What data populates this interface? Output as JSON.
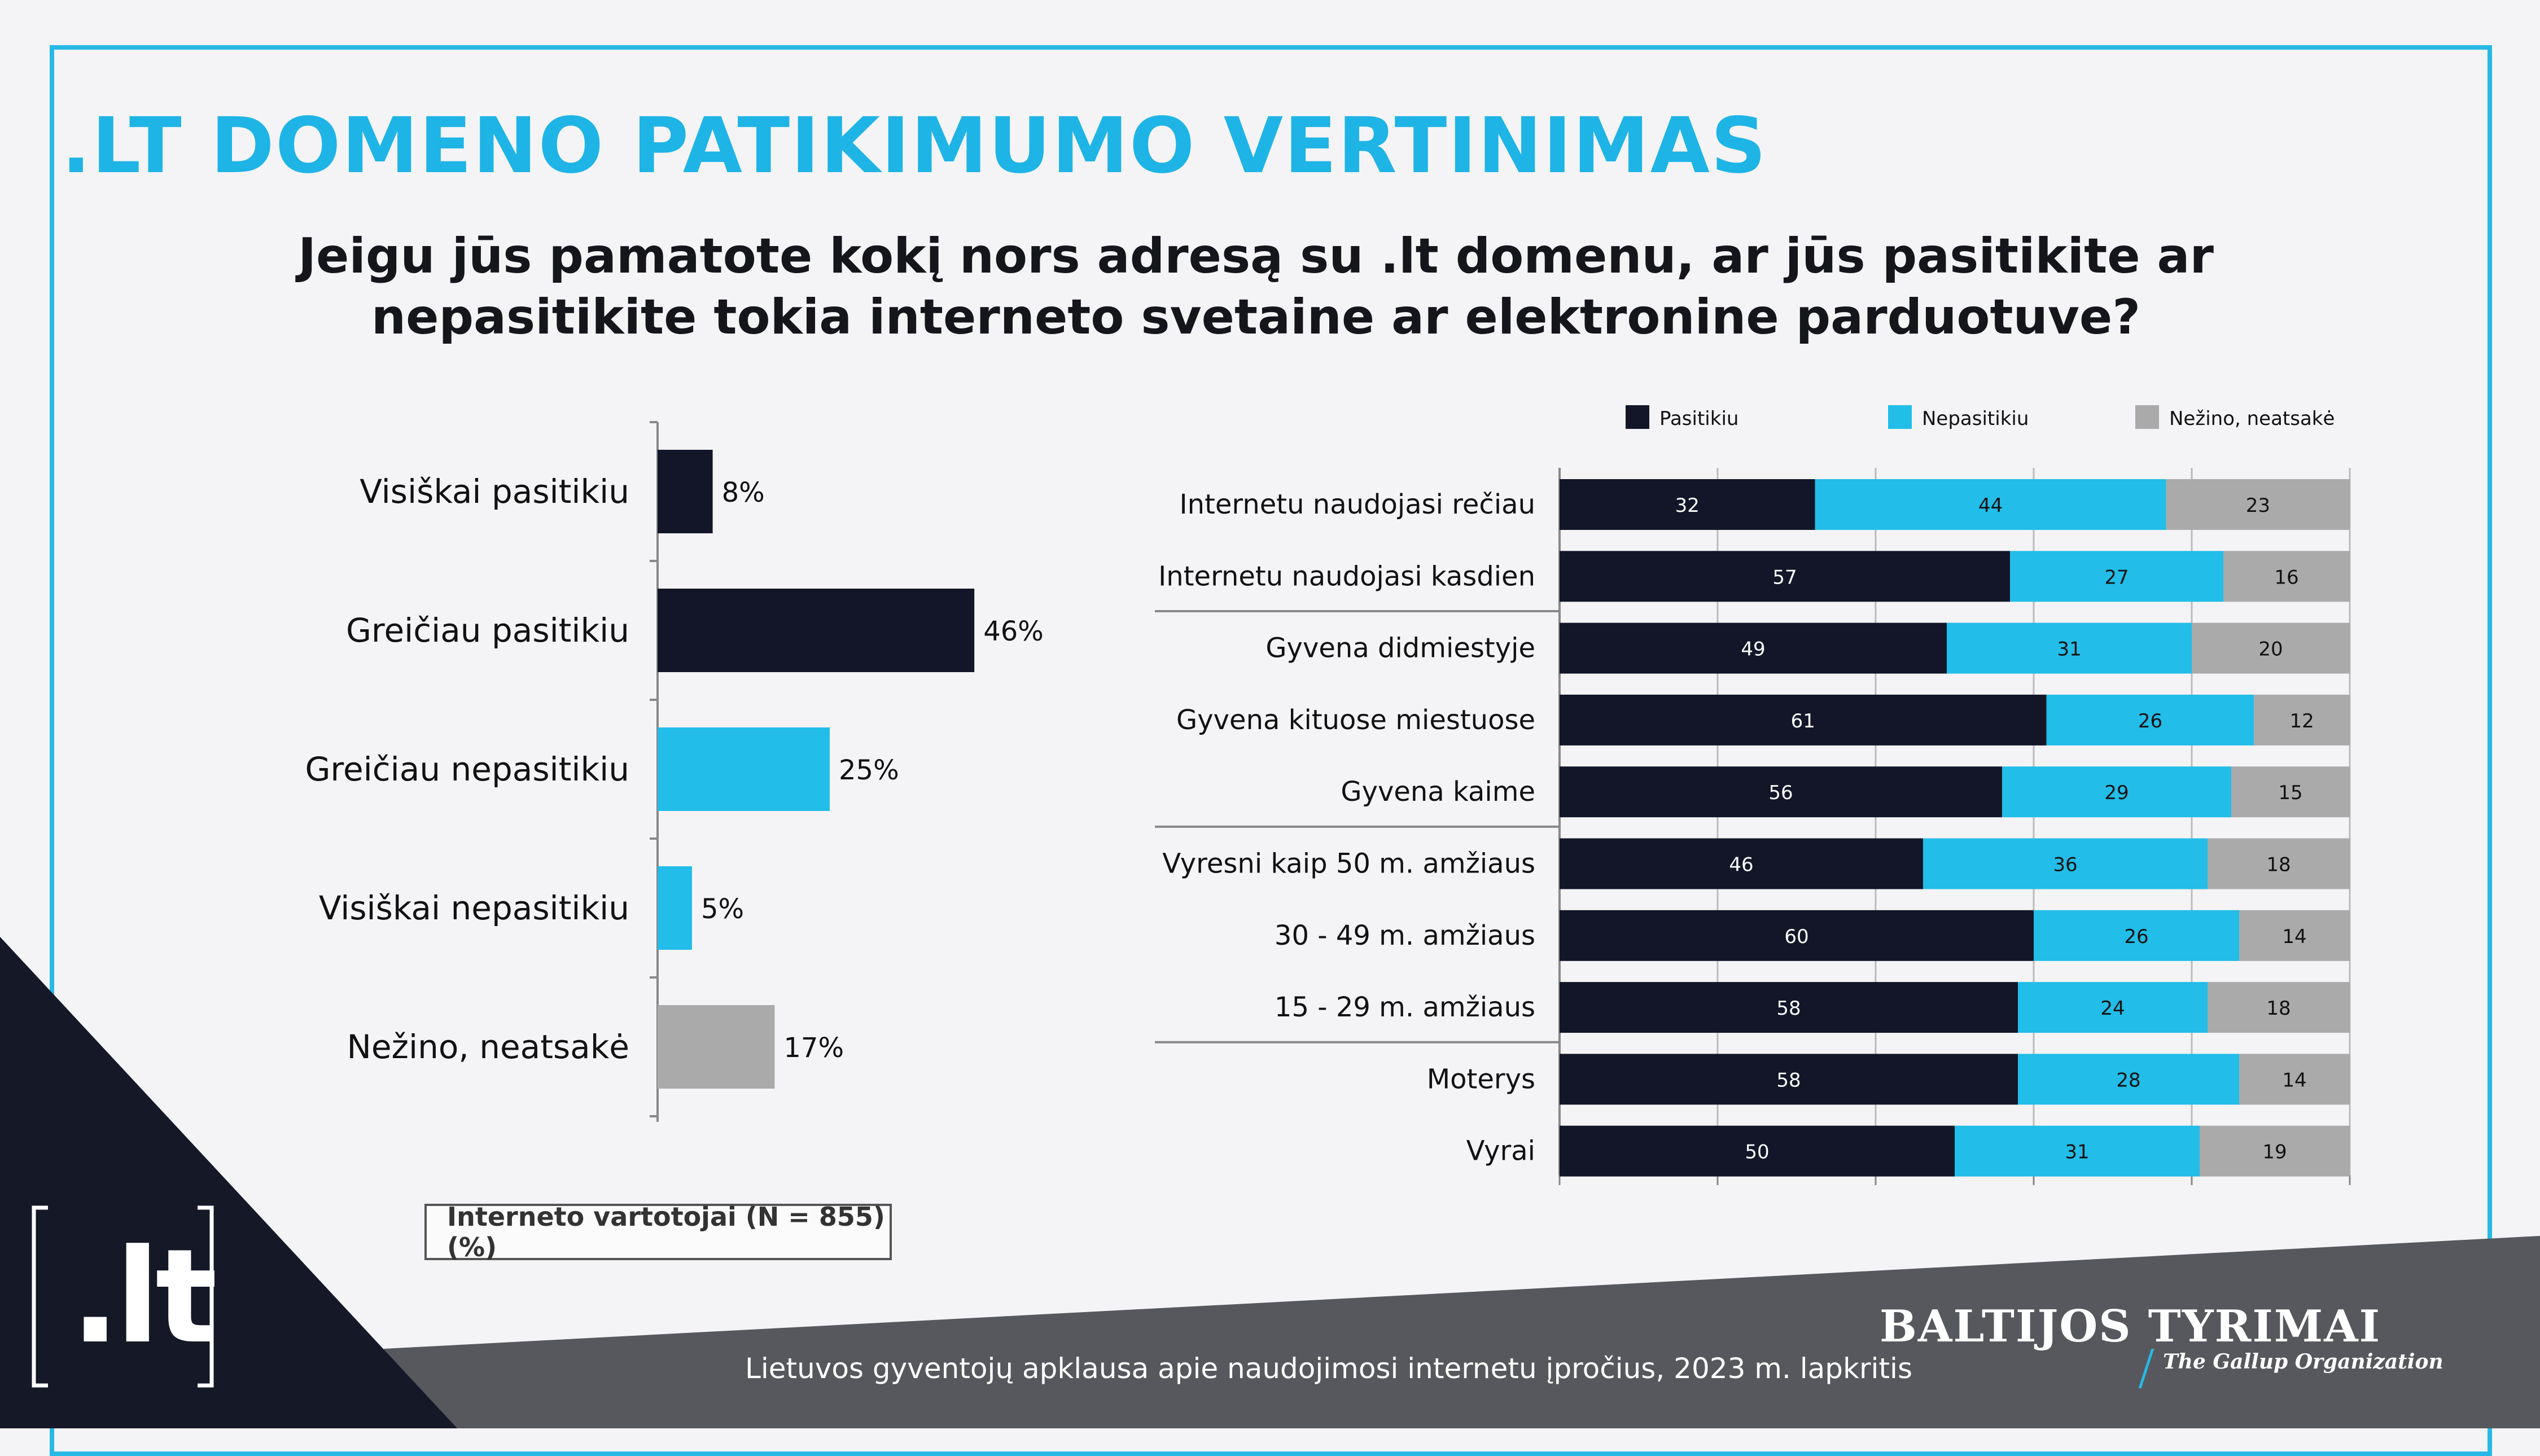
{
  "title": ".LT DOMENO PATIKIMUMO VERTINIMAS",
  "question": "Jeigu jūs pamatote kokį nors adresą su .lt domenu, ar jūs pasitikite ar nepasitikite tokia interneto svetaine ar elektronine parduotuve?",
  "note": "Interneto vartotojai (N = 855) (%)",
  "footer": "Lietuvos gyventojų apklausa apie naudojimosi internetu įpročius, 2023 m. lapkritis",
  "brand": {
    "name": "BALTIJOS TYRIMAI",
    "tagline": "The Gallup Organization"
  },
  "logo": ".lt",
  "colors": {
    "dark": "#121628",
    "blue": "#22bde8",
    "gray": "#aaaaaa",
    "frame": "#27b9e6"
  },
  "chart_data": [
    {
      "type": "bar",
      "orientation": "horizontal",
      "categories": [
        "Visiškai pasitikiu",
        "Greičiau pasitikiu",
        "Greičiau nepasitikiu",
        "Visiškai nepasitikiu",
        "Nežino, neatsakė"
      ],
      "values": [
        8,
        46,
        25,
        5,
        17
      ],
      "value_labels": [
        "8%",
        "46%",
        "25%",
        "5%",
        "17%"
      ],
      "bar_colors": [
        "#121628",
        "#121628",
        "#22bde8",
        "#22bde8",
        "#aaaaaa"
      ]
    },
    {
      "type": "bar",
      "orientation": "horizontal",
      "stacked": true,
      "legend_position": "top",
      "categories": [
        "Internetu naudojasi rečiau",
        "Internetu naudojasi kasdien",
        "Gyvena didmiestyje",
        "Gyvena kituose miestuose",
        "Gyvena kaime",
        "Vyresni kaip 50 m. amžiaus",
        "30 - 49 m. amžiaus",
        "15 - 29 m. amžiaus",
        "Moterys",
        "Vyrai"
      ],
      "series": [
        {
          "name": "Pasitikiu",
          "color": "#121628",
          "values": [
            32,
            57,
            49,
            61,
            56,
            46,
            60,
            58,
            58,
            50
          ]
        },
        {
          "name": "Nepasitikiu",
          "color": "#22bde8",
          "values": [
            44,
            27,
            31,
            26,
            29,
            36,
            26,
            24,
            28,
            31
          ]
        },
        {
          "name": "Nežino, neatsakė",
          "color": "#aaaaaa",
          "values": [
            23,
            16,
            20,
            12,
            15,
            18,
            14,
            18,
            14,
            19
          ]
        }
      ]
    }
  ]
}
